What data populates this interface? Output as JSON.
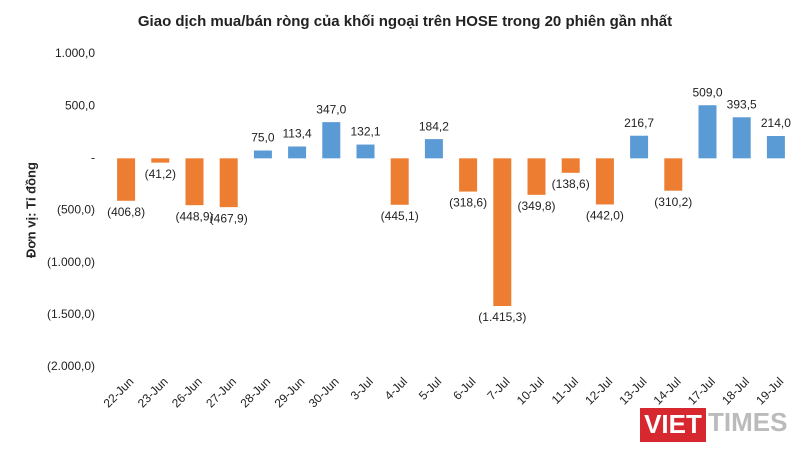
{
  "chart_data": {
    "type": "bar",
    "title": "Giao dịch mua/bán ròng của khối ngoại trên HOSE trong 20 phiên gần nhất",
    "y_label": "Đơn vị: Tỉ đồng",
    "categories": [
      "22-Jun",
      "23-Jun",
      "26-Jun",
      "27-Jun",
      "28-Jun",
      "29-Jun",
      "30-Jun",
      "3-Jul",
      "4-Jul",
      "5-Jul",
      "6-Jul",
      "7-Jul",
      "10-Jul",
      "11-Jul",
      "12-Jul",
      "13-Jul",
      "14-Jul",
      "17-Jul",
      "18-Jul",
      "19-Jul"
    ],
    "values": [
      -406.8,
      -41.2,
      -448.9,
      -467.9,
      75.0,
      113.4,
      347.0,
      132.1,
      -445.1,
      184.2,
      -318.6,
      -1415.3,
      -349.8,
      -138.6,
      -442.0,
      216.7,
      -310.2,
      509.0,
      393.5,
      214.0
    ],
    "value_labels": [
      "(406,8)",
      "(41,2)",
      "(448,9)",
      "(467,9)",
      "75,0",
      "113,4",
      "347,0",
      "132,1",
      "(445,1)",
      "184,2",
      "(318,6)",
      "(1.415,3)",
      "(349,8)",
      "(138,6)",
      "(442,0)",
      "216,7",
      "(310,2)",
      "509,0",
      "393,5",
      "214,0"
    ],
    "positive_color": "#5b9bd5",
    "negative_color": "#ed7d31",
    "ylim": [
      -2000,
      1000
    ],
    "yticks": [
      {
        "value": 1000,
        "label": "1.000,0"
      },
      {
        "value": 500,
        "label": "500,0"
      },
      {
        "value": 0,
        "label": "-"
      },
      {
        "value": -500,
        "label": "(500,0)"
      },
      {
        "value": -1000,
        "label": "(1.000,0)"
      },
      {
        "value": -1500,
        "label": "(1.500,0)"
      },
      {
        "value": -2000,
        "label": "(2.000,0)"
      }
    ],
    "grid": false
  },
  "logo": {
    "left": "VIET",
    "right": "TIMES"
  }
}
